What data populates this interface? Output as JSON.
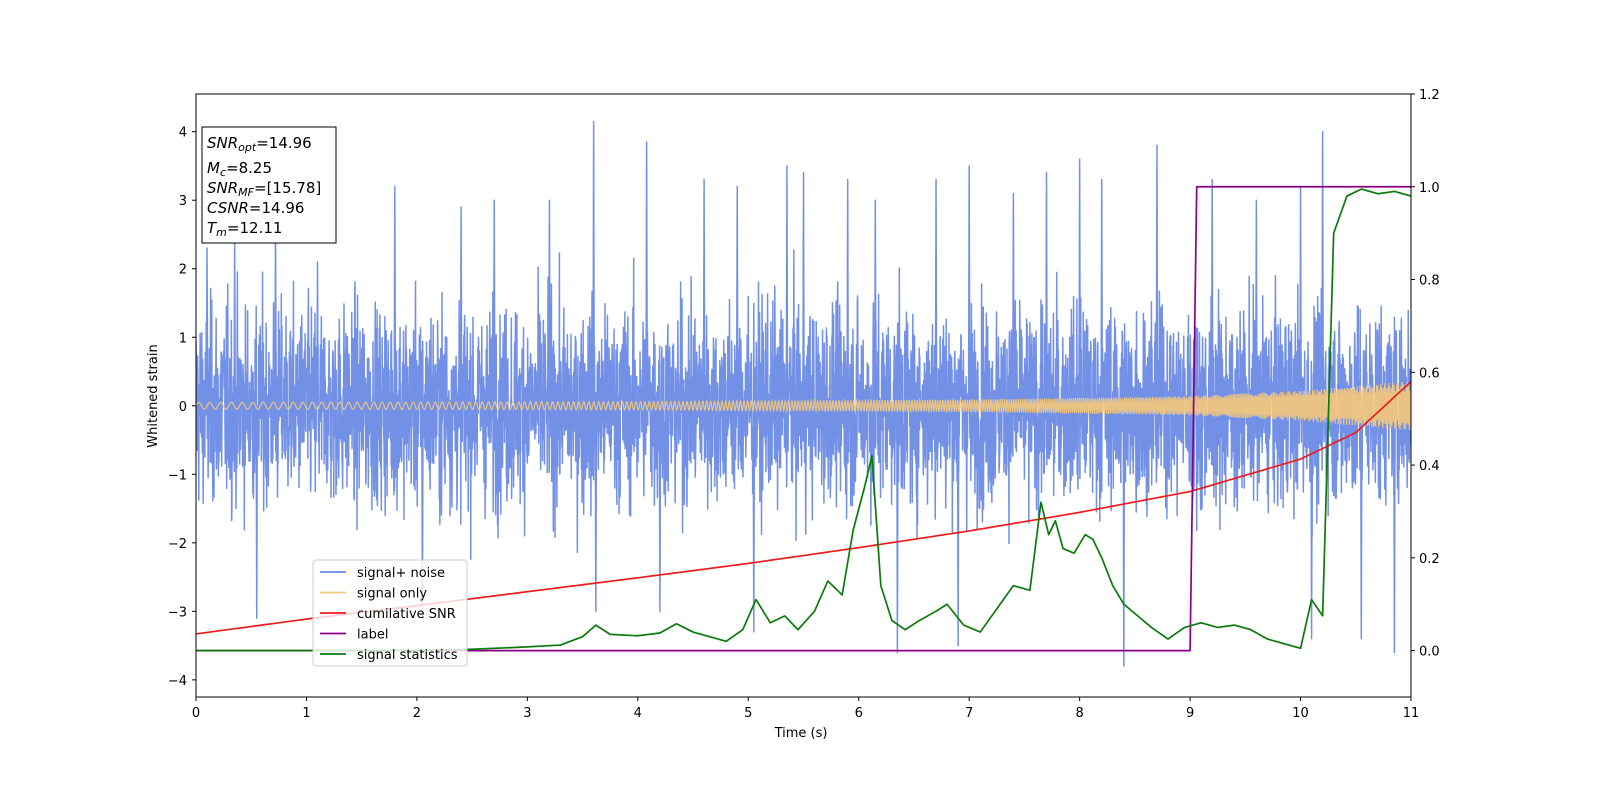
{
  "chart_data": {
    "type": "line",
    "title": "",
    "xlabel": "Time (s)",
    "ylabel": "Whitened strain",
    "y2label": "",
    "xlim": [
      0,
      11
    ],
    "ylim": [
      -4.25,
      4.55
    ],
    "y2lim": [
      -0.1,
      1.2
    ],
    "x_ticks": [
      0,
      1,
      2,
      3,
      4,
      5,
      6,
      7,
      8,
      9,
      10,
      11
    ],
    "y_ticks": [
      -4,
      -3,
      -2,
      -1,
      0,
      1,
      2,
      3,
      4
    ],
    "y2_ticks": [
      0.0,
      0.2,
      0.4,
      0.6,
      0.8,
      1.0,
      1.2
    ],
    "x_tick_labels": [
      "0",
      "1",
      "2",
      "3",
      "4",
      "5",
      "6",
      "7",
      "8",
      "9",
      "10",
      "11"
    ],
    "y_tick_labels": [
      "−4",
      "−3",
      "−2",
      "−1",
      "0",
      "1",
      "2",
      "3",
      "4"
    ],
    "y2_tick_labels": [
      "0.0",
      "0.2",
      "0.4",
      "0.6",
      "0.8",
      "1.0",
      "1.2"
    ],
    "grid": false,
    "legend_position": "lower-left",
    "noise_envelope": {
      "t": [
        0,
        1,
        2,
        3,
        4,
        5,
        6,
        7,
        8,
        9,
        10,
        11
      ],
      "typical_low": [
        -2.0,
        -2.0,
        -2.0,
        -2.0,
        -2.0,
        -2.0,
        -2.0,
        -2.0,
        -2.0,
        -2.0,
        -2.0,
        -2.0
      ],
      "typical_high": [
        2.0,
        2.0,
        2.0,
        2.0,
        2.0,
        2.0,
        2.0,
        2.0,
        2.0,
        2.0,
        2.0,
        2.0
      ],
      "extremes_min": -3.8,
      "extremes_max": 4.15
    },
    "series": [
      {
        "name": "signal+ noise",
        "axis": "left",
        "color": "#6b8ae6",
        "kind": "noise",
        "spikes": [
          {
            "x": 0.1,
            "y": 2.3
          },
          {
            "x": 0.35,
            "y": 2.4
          },
          {
            "x": 0.55,
            "y": -3.1
          },
          {
            "x": 0.72,
            "y": 2.7
          },
          {
            "x": 1.1,
            "y": 2.1
          },
          {
            "x": 1.8,
            "y": 3.2
          },
          {
            "x": 2.05,
            "y": -3.1
          },
          {
            "x": 2.4,
            "y": 2.9
          },
          {
            "x": 2.7,
            "y": 3.0
          },
          {
            "x": 3.2,
            "y": 3.0
          },
          {
            "x": 3.6,
            "y": 4.15
          },
          {
            "x": 3.62,
            "y": -3.0
          },
          {
            "x": 4.08,
            "y": 3.85
          },
          {
            "x": 4.2,
            "y": -3.0
          },
          {
            "x": 4.6,
            "y": 3.3
          },
          {
            "x": 4.9,
            "y": 3.2
          },
          {
            "x": 5.05,
            "y": -3.3
          },
          {
            "x": 5.35,
            "y": 3.5
          },
          {
            "x": 5.5,
            "y": 3.4
          },
          {
            "x": 5.9,
            "y": 3.3
          },
          {
            "x": 6.15,
            "y": 3.0
          },
          {
            "x": 6.35,
            "y": -3.6
          },
          {
            "x": 6.7,
            "y": 3.3
          },
          {
            "x": 6.9,
            "y": -3.5
          },
          {
            "x": 7.0,
            "y": 3.5
          },
          {
            "x": 7.4,
            "y": 3.1
          },
          {
            "x": 7.7,
            "y": 3.4
          },
          {
            "x": 8.0,
            "y": 3.6
          },
          {
            "x": 8.2,
            "y": 3.3
          },
          {
            "x": 8.4,
            "y": -3.8
          },
          {
            "x": 8.7,
            "y": 3.8
          },
          {
            "x": 9.2,
            "y": 3.3
          },
          {
            "x": 9.6,
            "y": 3.0
          },
          {
            "x": 10.0,
            "y": 3.2
          },
          {
            "x": 10.1,
            "y": -3.4
          },
          {
            "x": 10.2,
            "y": 4.0
          },
          {
            "x": 10.55,
            "y": -3.4
          },
          {
            "x": 10.85,
            "y": -3.6
          }
        ]
      },
      {
        "name": "signal only",
        "axis": "left",
        "color": "#f5c97a",
        "kind": "chirp",
        "amplitude_at_t": [
          {
            "x": 0,
            "y": 0.05
          },
          {
            "x": 4,
            "y": 0.06
          },
          {
            "x": 7,
            "y": 0.09
          },
          {
            "x": 9,
            "y": 0.14
          },
          {
            "x": 10,
            "y": 0.22
          },
          {
            "x": 11,
            "y": 0.36
          }
        ]
      },
      {
        "name": "cumilative SNR",
        "axis": "right",
        "color": "#ee1c1c",
        "x": [
          0,
          1,
          2,
          3,
          4,
          5,
          6,
          7,
          8,
          9,
          10,
          10.5,
          11
        ],
        "values": [
          0.036,
          0.068,
          0.097,
          0.127,
          0.157,
          0.188,
          0.222,
          0.258,
          0.298,
          0.343,
          0.413,
          0.47,
          0.58
        ]
      },
      {
        "name": "label",
        "axis": "right",
        "color": "#8b008b",
        "x": [
          0,
          9.0,
          9.06,
          11
        ],
        "values": [
          0.0,
          0.0,
          1.0,
          1.0
        ]
      },
      {
        "name": "signal statistics",
        "axis": "right",
        "color": "#0b7a0b",
        "x": [
          0,
          1,
          2,
          2.5,
          3.0,
          3.3,
          3.5,
          3.62,
          3.75,
          4.0,
          4.2,
          4.35,
          4.5,
          4.8,
          4.95,
          5.07,
          5.2,
          5.33,
          5.45,
          5.6,
          5.72,
          5.85,
          5.95,
          6.05,
          6.12,
          6.2,
          6.3,
          6.42,
          6.55,
          6.7,
          6.8,
          6.95,
          7.1,
          7.25,
          7.4,
          7.55,
          7.65,
          7.72,
          7.78,
          7.85,
          7.95,
          8.05,
          8.12,
          8.2,
          8.3,
          8.4,
          8.5,
          8.65,
          8.8,
          8.95,
          9.1,
          9.25,
          9.4,
          9.55,
          9.7,
          9.85,
          10.0,
          10.1,
          10.2,
          10.3,
          10.42,
          10.55,
          10.7,
          10.85,
          11.0
        ],
        "values": [
          0.0,
          0.0,
          0.0,
          0.003,
          0.008,
          0.012,
          0.03,
          0.055,
          0.035,
          0.032,
          0.038,
          0.058,
          0.04,
          0.02,
          0.045,
          0.11,
          0.06,
          0.075,
          0.045,
          0.085,
          0.15,
          0.12,
          0.26,
          0.35,
          0.42,
          0.14,
          0.065,
          0.045,
          0.065,
          0.085,
          0.1,
          0.055,
          0.04,
          0.09,
          0.14,
          0.13,
          0.32,
          0.25,
          0.28,
          0.22,
          0.21,
          0.25,
          0.24,
          0.2,
          0.14,
          0.1,
          0.08,
          0.05,
          0.025,
          0.05,
          0.06,
          0.05,
          0.055,
          0.045,
          0.025,
          0.015,
          0.005,
          0.11,
          0.075,
          0.9,
          0.98,
          0.995,
          0.985,
          0.99,
          0.98
        ]
      }
    ]
  },
  "info_box": {
    "snr_opt_main": "SNR",
    "snr_opt_sub": "opt",
    "snr_opt_value": "=14.96",
    "mc_main": "M",
    "mc_sub": "c",
    "mc_value": "=8.25",
    "snr_mf_main": "SNR",
    "snr_mf_sub": "MF",
    "snr_mf_value": "=[15.78]",
    "csnr_main": "CSNR",
    "csnr_value": "=14.96",
    "tm_main": "T",
    "tm_sub": "m",
    "tm_value": "=12.11"
  }
}
